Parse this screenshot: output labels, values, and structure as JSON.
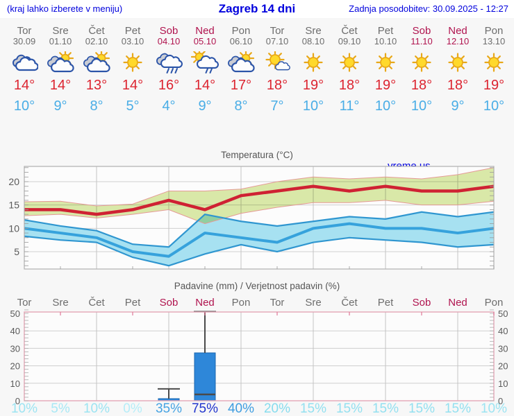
{
  "header": {
    "left_hint": "(kraj lahko izberete v meniju)",
    "title": "Zagreb 14 dni",
    "updated": "Zadnja posodobitev: 30.09.2025 - 12:27"
  },
  "watermark": "vreme.us",
  "colors": {
    "link_blue": "#0000dd",
    "weekend": "#b0134e",
    "day_gray": "#6d6d6d",
    "tmax_red": "#dc2430",
    "tmin_blue": "#49ade6",
    "max_line": "#cf2233",
    "max_band_fill": "#dcebaa",
    "max_band_edge": "#e59a96",
    "min_line": "#36a2dc",
    "min_band_fill": "#a7e1f1",
    "min_band_edge": "#2f96d0",
    "bar_fill": "#2e87d9",
    "bar_edge": "#1a66b0",
    "whisker": "#4a4a4a",
    "grid": "#cfcfcf",
    "frame": "#b0b0b0",
    "precip_frame": "#e4a6b6",
    "tick_label": "#5a5a5a"
  },
  "days": [
    {
      "name": "Tor",
      "date": "30.09",
      "weekend": false,
      "icon": "cloudy",
      "tmax": "14°",
      "tmin": "10°",
      "pct": "10%",
      "pct_color": "#9ce4f2"
    },
    {
      "name": "Sre",
      "date": "01.10",
      "weekend": false,
      "icon": "partly-cloudy",
      "tmax": "14°",
      "tmin": "9°",
      "pct": "5%",
      "pct_color": "#a8e8f5"
    },
    {
      "name": "Čet",
      "date": "02.10",
      "weekend": false,
      "icon": "partly-cloudy",
      "tmax": "13°",
      "tmin": "8°",
      "pct": "10%",
      "pct_color": "#9ce4f2"
    },
    {
      "name": "Pet",
      "date": "03.10",
      "weekend": false,
      "icon": "sunny",
      "tmax": "14°",
      "tmin": "5°",
      "pct": "0%",
      "pct_color": "#b5edf8"
    },
    {
      "name": "Sob",
      "date": "04.10",
      "weekend": true,
      "icon": "rain",
      "tmax": "16°",
      "tmin": "4°",
      "pct": "35%",
      "pct_color": "#46a3e3"
    },
    {
      "name": "Ned",
      "date": "05.10",
      "weekend": true,
      "icon": "sun-rain",
      "tmax": "14°",
      "tmin": "9°",
      "pct": "75%",
      "pct_color": "#2134cd"
    },
    {
      "name": "Pon",
      "date": "06.10",
      "weekend": false,
      "icon": "partly-cloudy",
      "tmax": "17°",
      "tmin": "8°",
      "pct": "40%",
      "pct_color": "#3f9de0"
    },
    {
      "name": "Tor",
      "date": "07.10",
      "weekend": false,
      "icon": "mostly-sunny",
      "tmax": "18°",
      "tmin": "7°",
      "pct": "20%",
      "pct_color": "#86dcee"
    },
    {
      "name": "Sre",
      "date": "08.10",
      "weekend": false,
      "icon": "sunny",
      "tmax": "19°",
      "tmin": "10°",
      "pct": "15%",
      "pct_color": "#93e0f0"
    },
    {
      "name": "Čet",
      "date": "09.10",
      "weekend": false,
      "icon": "sunny",
      "tmax": "18°",
      "tmin": "11°",
      "pct": "15%",
      "pct_color": "#93e0f0"
    },
    {
      "name": "Pet",
      "date": "10.10",
      "weekend": false,
      "icon": "sunny",
      "tmax": "19°",
      "tmin": "10°",
      "pct": "15%",
      "pct_color": "#93e0f0"
    },
    {
      "name": "Sob",
      "date": "11.10",
      "weekend": true,
      "icon": "sunny",
      "tmax": "18°",
      "tmin": "10°",
      "pct": "15%",
      "pct_color": "#93e0f0"
    },
    {
      "name": "Ned",
      "date": "12.10",
      "weekend": true,
      "icon": "sunny",
      "tmax": "18°",
      "tmin": "9°",
      "pct": "15%",
      "pct_color": "#93e0f0"
    },
    {
      "name": "Pon",
      "date": "13.10",
      "weekend": false,
      "icon": "sunny",
      "tmax": "19°",
      "tmin": "10°",
      "pct": "10%",
      "pct_color": "#9ce4f2"
    }
  ],
  "chart_data": [
    {
      "type": "line",
      "title": "Temperatura (°C)",
      "categories": [
        "30.09",
        "01.10",
        "02.10",
        "03.10",
        "04.10",
        "05.10",
        "06.10",
        "07.10",
        "08.10",
        "09.10",
        "10.10",
        "11.10",
        "12.10",
        "13.10"
      ],
      "yticks": [
        5,
        10,
        15,
        20
      ],
      "ylim": [
        1.3,
        23.3
      ],
      "grid": true,
      "series": [
        {
          "name": "max",
          "values": [
            14,
            14,
            13,
            14,
            16,
            14,
            17,
            18,
            19,
            18,
            19,
            18,
            18,
            19
          ]
        },
        {
          "name": "max_range_hi",
          "values": [
            15.7,
            15.8,
            14.8,
            15.2,
            18,
            18,
            18.4,
            20,
            21,
            20.6,
            21,
            20.6,
            21.5,
            23
          ]
        },
        {
          "name": "max_range_lo",
          "values": [
            12.7,
            13,
            12.2,
            13,
            14,
            11,
            13.2,
            14.5,
            15.5,
            15.5,
            16,
            15,
            15,
            15.8
          ]
        },
        {
          "name": "min",
          "values": [
            10,
            9,
            8,
            5,
            4,
            9,
            8,
            7,
            10,
            11,
            10,
            10,
            9,
            10
          ]
        },
        {
          "name": "min_range_hi",
          "values": [
            11.8,
            10.5,
            9.5,
            6.6,
            6,
            13,
            11.5,
            10.5,
            11.5,
            12.5,
            12,
            13.5,
            12.5,
            13.5
          ]
        },
        {
          "name": "min_range_lo",
          "values": [
            8.3,
            7.5,
            7,
            3.8,
            2,
            4.5,
            6.5,
            5,
            7,
            8,
            7.5,
            7,
            6,
            6.5
          ]
        }
      ]
    },
    {
      "type": "bar",
      "title": "Padavine (mm) / Verjetnost padavin (%)",
      "categories": [
        "Tor",
        "Sre",
        "Čet",
        "Pet",
        "Sob",
        "Ned",
        "Pon",
        "Tor",
        "Sre",
        "Čet",
        "Pet",
        "Sob",
        "Ned",
        "Pon"
      ],
      "values_mm": [
        0,
        0,
        0,
        0,
        1.2,
        27.4,
        0,
        0,
        0,
        0,
        0,
        0,
        0,
        0
      ],
      "whisker_hi": [
        null,
        null,
        null,
        null,
        6.8,
        51,
        null,
        null,
        null,
        null,
        null,
        null,
        null,
        null
      ],
      "whisker_lo": [
        null,
        null,
        null,
        null,
        null,
        3.6,
        null,
        null,
        null,
        null,
        null,
        null,
        null,
        null
      ],
      "probability_pct": [
        10,
        5,
        10,
        0,
        35,
        75,
        40,
        20,
        15,
        15,
        15,
        15,
        15,
        10
      ],
      "yticks": [
        0,
        10,
        20,
        30,
        40,
        50
      ],
      "ylim": [
        0,
        52
      ],
      "grid": true
    }
  ]
}
